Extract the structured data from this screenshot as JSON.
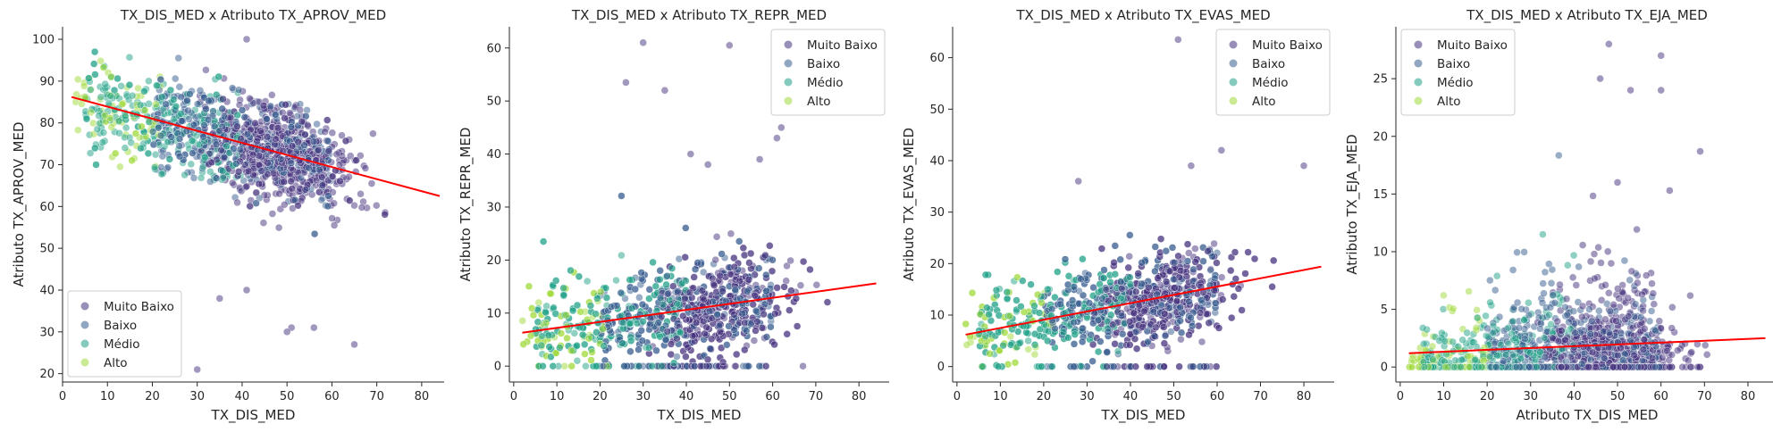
{
  "colors": {
    "muito_baixo": "#46327e",
    "baixo": "#365c8d",
    "medio": "#1fa187",
    "alto": "#9fda3a",
    "regression": "#ff0000",
    "axis": "#262626",
    "legend_border": "#cccccc"
  },
  "chart_data": [
    {
      "type": "scatter",
      "title": "TX_DIS_MED x Atributo TX_APROV_MED",
      "xlabel": "TX_DIS_MED",
      "ylabel": "Atributo TX_APROV_MED",
      "xlim": [
        0,
        85
      ],
      "ylim": [
        18,
        103
      ],
      "xticks": [
        "0",
        "10",
        "20",
        "30",
        "40",
        "50",
        "60",
        "70",
        "80"
      ],
      "yticks": [
        "20",
        "30",
        "40",
        "50",
        "60",
        "70",
        "80",
        "90",
        "100"
      ],
      "legend_placement": "lower-left",
      "legend": [
        "Muito Baixo",
        "Baixo",
        "Médio",
        "Alto"
      ],
      "grid": false,
      "regression": {
        "x": [
          2,
          84
        ],
        "y": [
          86.2,
          62.5
        ]
      },
      "outliers": [
        [
          41,
          100
        ],
        [
          30,
          21
        ],
        [
          65,
          27
        ],
        [
          51,
          31
        ],
        [
          56,
          31
        ],
        [
          41,
          40
        ],
        [
          35,
          38
        ],
        [
          50,
          30
        ]
      ]
    },
    {
      "type": "scatter",
      "title": "TX_DIS_MED x Atributo TX_REPR_MED",
      "xlabel": "TX_DIS_MED",
      "ylabel": "Atributo TX_REPR_MED",
      "xlim": [
        -1,
        87
      ],
      "ylim": [
        -3,
        64
      ],
      "xticks": [
        "0",
        "10",
        "20",
        "30",
        "40",
        "50",
        "60",
        "70",
        "80"
      ],
      "yticks": [
        "0",
        "10",
        "20",
        "30",
        "40",
        "50",
        "60"
      ],
      "legend_placement": "top-right",
      "legend": [
        "Muito Baixo",
        "Baixo",
        "Médio",
        "Alto"
      ],
      "grid": false,
      "regression": {
        "x": [
          2,
          84
        ],
        "y": [
          6.3,
          15.6
        ]
      },
      "outliers": [
        [
          30,
          61
        ],
        [
          50,
          60.5
        ],
        [
          26,
          53.5
        ],
        [
          35,
          52
        ],
        [
          41,
          40
        ],
        [
          62,
          45
        ],
        [
          61,
          43
        ],
        [
          57,
          39
        ],
        [
          45,
          38
        ]
      ]
    },
    {
      "type": "scatter",
      "title": "TX_DIS_MED x Atributo TX_EVAS_MED",
      "xlabel": "TX_DIS_MED",
      "ylabel": "Atributo TX_EVAS_MED",
      "xlim": [
        -1,
        87
      ],
      "ylim": [
        -3,
        66
      ],
      "xticks": [
        "0",
        "10",
        "20",
        "30",
        "40",
        "50",
        "60",
        "70",
        "80"
      ],
      "yticks": [
        "0",
        "10",
        "20",
        "30",
        "40",
        "50",
        "60"
      ],
      "legend_placement": "top-right",
      "legend": [
        "Muito Baixo",
        "Baixo",
        "Médio",
        "Alto"
      ],
      "grid": false,
      "regression": {
        "x": [
          2,
          84
        ],
        "y": [
          6.2,
          19.4
        ]
      },
      "outliers": [
        [
          51,
          63.5
        ],
        [
          61,
          42
        ],
        [
          54,
          39
        ],
        [
          80,
          39
        ],
        [
          28,
          36
        ]
      ]
    },
    {
      "type": "scatter",
      "title": "TX_DIS_MED x Atributo TX_EJA_MED",
      "xlabel": "Atributo TX_DIS_MED",
      "ylabel": "Atributo TX_EJA_MED",
      "xlim": [
        -1,
        87
      ],
      "ylim": [
        -1.3,
        29.5
      ],
      "xticks": [
        "0",
        "10",
        "20",
        "30",
        "40",
        "50",
        "60",
        "70",
        "80"
      ],
      "yticks": [
        "0",
        "5",
        "10",
        "15",
        "20",
        "25"
      ],
      "legend_placement": "top-left",
      "legend": [
        "Muito Baixo",
        "Baixo",
        "Médio",
        "Alto"
      ],
      "grid": false,
      "regression": {
        "x": [
          2,
          84
        ],
        "y": [
          1.2,
          2.5
        ]
      },
      "outliers": [
        [
          48,
          28
        ],
        [
          60,
          27
        ],
        [
          46,
          25
        ],
        [
          53,
          24
        ],
        [
          60,
          24
        ],
        [
          69,
          18.7
        ],
        [
          62,
          15.3
        ],
        [
          50,
          16
        ]
      ]
    }
  ]
}
